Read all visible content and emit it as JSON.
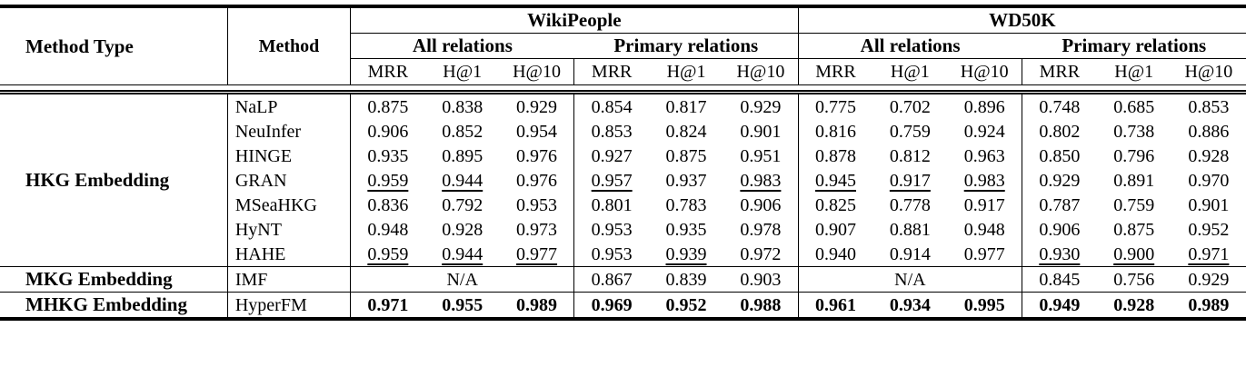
{
  "header": {
    "method_type": "Method Type",
    "method": "Method",
    "dataset_wikipeople": "WikiPeople",
    "dataset_wd50k": "WD50K",
    "subgroup_all": "All relations",
    "subgroup_primary": "Primary relations",
    "metric_mrr": "MRR",
    "metric_h1": "H@1",
    "metric_h10": "H@10"
  },
  "groups": {
    "hkg": "HKG Embedding",
    "mkg": "MKG Embedding",
    "mhkg": "MHKG Embedding"
  },
  "na": "N/A",
  "rows": [
    {
      "method": "NaLP",
      "v": [
        "0.875",
        "0.838",
        "0.929",
        "0.854",
        "0.817",
        "0.929",
        "0.775",
        "0.702",
        "0.896",
        "0.748",
        "0.685",
        "0.853"
      ]
    },
    {
      "method": "NeuInfer",
      "v": [
        "0.906",
        "0.852",
        "0.954",
        "0.853",
        "0.824",
        "0.901",
        "0.816",
        "0.759",
        "0.924",
        "0.802",
        "0.738",
        "0.886"
      ]
    },
    {
      "method": "HINGE",
      "v": [
        "0.935",
        "0.895",
        "0.976",
        "0.927",
        "0.875",
        "0.951",
        "0.878",
        "0.812",
        "0.963",
        "0.850",
        "0.796",
        "0.928"
      ]
    },
    {
      "method": "GRAN",
      "v": [
        "0.959",
        "0.944",
        "0.976",
        "0.957",
        "0.937",
        "0.983",
        "0.945",
        "0.917",
        "0.983",
        "0.929",
        "0.891",
        "0.970"
      ]
    },
    {
      "method": "MSeaHKG",
      "v": [
        "0.836",
        "0.792",
        "0.953",
        "0.801",
        "0.783",
        "0.906",
        "0.825",
        "0.778",
        "0.917",
        "0.787",
        "0.759",
        "0.901"
      ]
    },
    {
      "method": "HyNT",
      "v": [
        "0.948",
        "0.928",
        "0.973",
        "0.953",
        "0.935",
        "0.978",
        "0.907",
        "0.881",
        "0.948",
        "0.906",
        "0.875",
        "0.952"
      ]
    },
    {
      "method": "HAHE",
      "v": [
        "0.959",
        "0.944",
        "0.977",
        "0.953",
        "0.939",
        "0.972",
        "0.940",
        "0.914",
        "0.977",
        "0.930",
        "0.900",
        "0.971"
      ]
    },
    {
      "method": "IMF",
      "v": [
        "0.867",
        "0.839",
        "0.903",
        "0.845",
        "0.756",
        "0.929"
      ]
    },
    {
      "method": "HyperFM",
      "v": [
        "0.971",
        "0.955",
        "0.989",
        "0.969",
        "0.952",
        "0.988",
        "0.961",
        "0.934",
        "0.995",
        "0.949",
        "0.928",
        "0.989"
      ]
    }
  ]
}
